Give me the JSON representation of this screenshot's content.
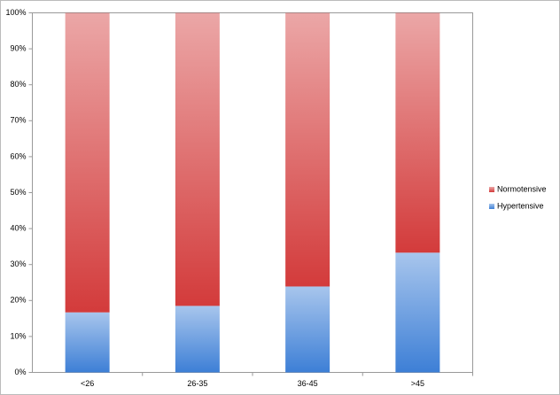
{
  "chart_data": {
    "type": "stacked_bar",
    "categories": [
      "<26",
      "26-35",
      "36-45",
      ">45"
    ],
    "series": [
      {
        "name": "Hypertensive",
        "color": "#3d7fd6",
        "values": [
          16.7,
          18.5,
          23.9,
          33.3
        ]
      },
      {
        "name": "Normotensive",
        "color": "#d33b3b",
        "values": [
          83.3,
          81.5,
          76.1,
          66.7
        ]
      }
    ],
    "ylim": [
      0,
      100
    ],
    "yticks": [
      {
        "value": 0,
        "label": "0%"
      },
      {
        "value": 10,
        "label": "10%"
      },
      {
        "value": 20,
        "label": "20%"
      },
      {
        "value": 30,
        "label": "30%"
      },
      {
        "value": 40,
        "label": "40%"
      },
      {
        "value": 50,
        "label": "50%"
      },
      {
        "value": 60,
        "label": "60%"
      },
      {
        "value": 70,
        "label": "70%"
      },
      {
        "value": 80,
        "label": "80%"
      },
      {
        "value": 90,
        "label": "90%"
      },
      {
        "value": 100,
        "label": "100%"
      }
    ],
    "legend": "right"
  }
}
